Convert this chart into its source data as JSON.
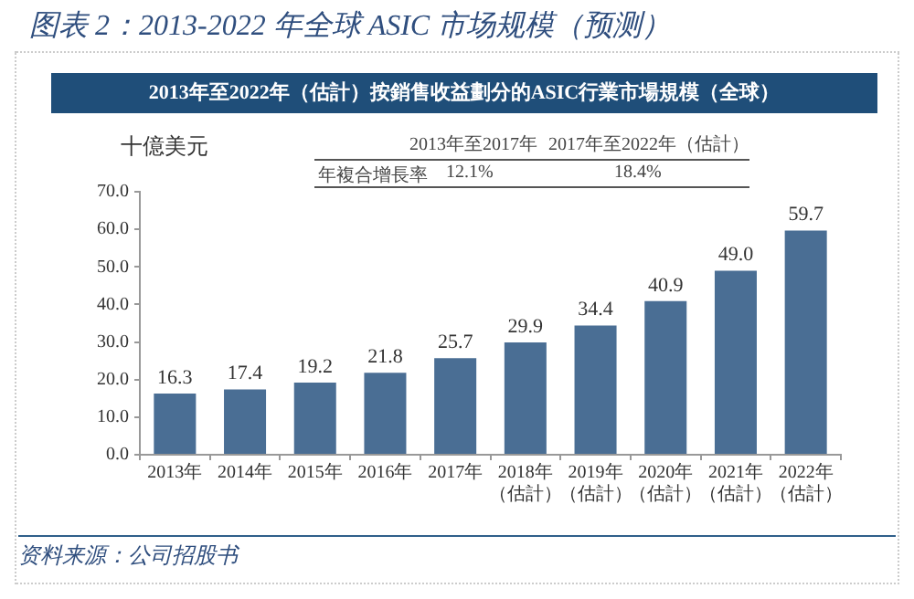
{
  "chart_data": {
    "type": "bar",
    "title": "图表 2：2013-2022 年全球 ASIC 市场规模（预测）",
    "subtitle": "2013年至2022年（估計）按銷售收益劃分的ASIC行業市場規模（全球）",
    "ylabel": "十億美元",
    "categories": [
      "2013年",
      "2014年",
      "2015年",
      "2016年",
      "2017年",
      "2018年（估計）",
      "2019年（估計）",
      "2020年（估計）",
      "2021年（估計）",
      "2022年（估計）"
    ],
    "values": [
      16.3,
      17.4,
      19.2,
      21.8,
      25.7,
      29.9,
      34.4,
      40.9,
      49.0,
      59.7
    ],
    "value_labels": [
      "16.3",
      "17.4",
      "19.2",
      "21.8",
      "25.7",
      "29.9",
      "34.4",
      "40.9",
      "49.0",
      "59.7"
    ],
    "color": "#4a6e94",
    "ylim": [
      0,
      70
    ],
    "yticks": [
      {
        "value": 0,
        "label": "0.0"
      },
      {
        "value": 10,
        "label": "10.0"
      },
      {
        "value": 20,
        "label": "20.0"
      },
      {
        "value": 30,
        "label": "30.0"
      },
      {
        "value": 40,
        "label": "40.0"
      },
      {
        "value": 50,
        "label": "50.0"
      },
      {
        "value": 60,
        "label": "60.0"
      },
      {
        "value": 70,
        "label": "70.0"
      }
    ],
    "annotations": [
      "2013年至2017年",
      "2017年至2022年（估計）",
      "年複合增長率",
      "12.1%",
      "18.4%",
      "资料来源：公司招股书"
    ]
  }
}
